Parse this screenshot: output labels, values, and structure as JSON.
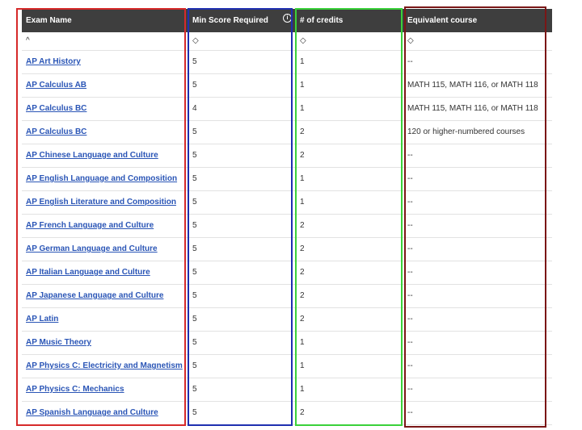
{
  "headers": {
    "exam_name": "Exam Name",
    "min_score": "Min Score Required",
    "credits": "# of credits",
    "equivalent": "Equivalent course"
  },
  "sort_icons": {
    "exam_name": "^",
    "min_score": "◇",
    "credits": "◇",
    "equivalent": "◇"
  },
  "info_icon_glyph": "i",
  "rows": [
    {
      "exam": "AP Art History",
      "min": "5",
      "credits": "1",
      "equiv": "--"
    },
    {
      "exam": "AP Calculus AB",
      "min": "5",
      "credits": "1",
      "equiv": "MATH 115, MATH 116, or MATH 118"
    },
    {
      "exam": "AP Calculus BC",
      "min": "4",
      "credits": "1",
      "equiv": "MATH 115, MATH 116, or MATH 118"
    },
    {
      "exam": "AP Calculus BC",
      "min": "5",
      "credits": "2",
      "equiv": "120 or higher-numbered courses"
    },
    {
      "exam": "AP Chinese Language and Culture",
      "min": "5",
      "credits": "2",
      "equiv": "--"
    },
    {
      "exam": "AP English Language and Composition",
      "min": "5",
      "credits": "1",
      "equiv": "--"
    },
    {
      "exam": "AP English Literature and Composition",
      "min": "5",
      "credits": "1",
      "equiv": "--"
    },
    {
      "exam": "AP French Language and Culture",
      "min": "5",
      "credits": "2",
      "equiv": "--"
    },
    {
      "exam": "AP German Language and Culture",
      "min": "5",
      "credits": "2",
      "equiv": "--"
    },
    {
      "exam": "AP Italian Language and Culture",
      "min": "5",
      "credits": "2",
      "equiv": "--"
    },
    {
      "exam": "AP Japanese Language and Culture",
      "min": "5",
      "credits": "2",
      "equiv": "--"
    },
    {
      "exam": "AP Latin",
      "min": "5",
      "credits": "2",
      "equiv": "--"
    },
    {
      "exam": "AP Music Theory",
      "min": "5",
      "credits": "1",
      "equiv": "--"
    },
    {
      "exam": "AP Physics C: Electricity and Magnetism",
      "min": "5",
      "credits": "1",
      "equiv": "--"
    },
    {
      "exam": "AP Physics C: Mechanics",
      "min": "5",
      "credits": "1",
      "equiv": "--"
    },
    {
      "exam": "AP Spanish Language and Culture",
      "min": "5",
      "credits": "2",
      "equiv": "--"
    }
  ],
  "highlight_colors": {
    "exam_name": "#d62a2a",
    "min_score": "#1f2fb0",
    "credits": "#3ad13a",
    "equivalent": "#7a1616"
  }
}
